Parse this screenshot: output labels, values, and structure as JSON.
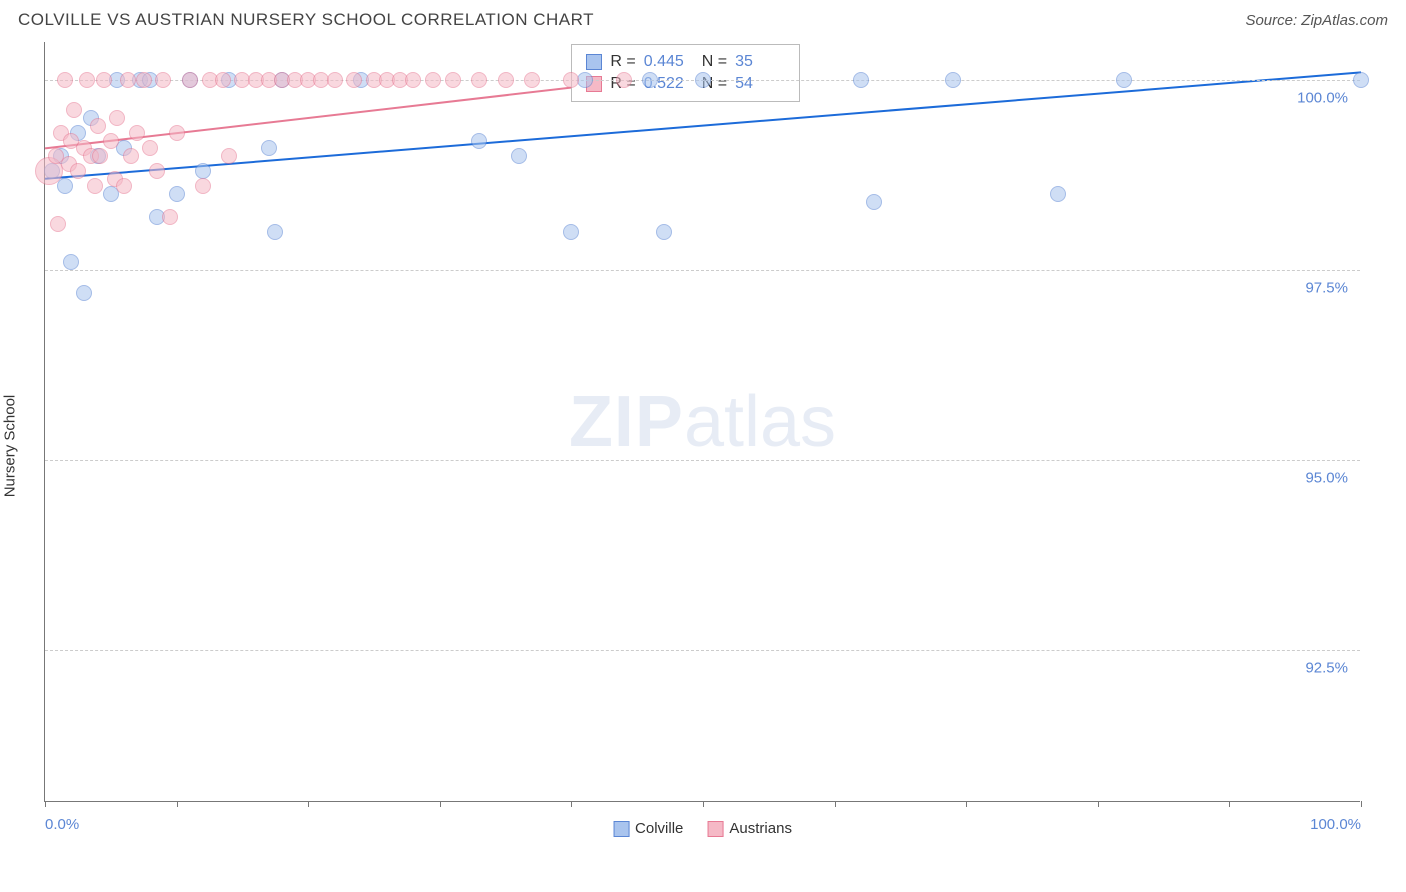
{
  "title": "COLVILLE VS AUSTRIAN NURSERY SCHOOL CORRELATION CHART",
  "source": "Source: ZipAtlas.com",
  "watermark": {
    "zip": "ZIP",
    "atlas": "atlas"
  },
  "yaxis": {
    "label": "Nursery School"
  },
  "chart": {
    "type": "scatter",
    "xlim": [
      0,
      100
    ],
    "ylim": [
      90.5,
      100.5
    ],
    "xtick_positions": [
      0,
      10,
      20,
      30,
      40,
      50,
      60,
      70,
      80,
      90,
      100
    ],
    "xtick_labels": {
      "0": "0.0%",
      "100": "100.0%"
    },
    "ytick_positions": [
      92.5,
      95.0,
      97.5,
      100.0
    ],
    "ytick_labels": [
      "92.5%",
      "95.0%",
      "97.5%",
      "100.0%"
    ],
    "grid_color": "#cccccc",
    "axis_color": "#777777",
    "background_color": "#ffffff",
    "marker_radius": 8,
    "marker_opacity": 0.55,
    "line_width": 2,
    "series": [
      {
        "name": "Colville",
        "label": "Colville",
        "color_fill": "#a9c4ee",
        "color_stroke": "#5b86d4",
        "line_color": "#1c6bd9",
        "R": 0.445,
        "N": 35,
        "trend": {
          "x1": 0,
          "y1": 98.7,
          "x2": 100,
          "y2": 100.1
        },
        "points": [
          {
            "x": 0.5,
            "y": 98.8
          },
          {
            "x": 1.2,
            "y": 99.0
          },
          {
            "x": 1.5,
            "y": 98.6
          },
          {
            "x": 2.0,
            "y": 97.6
          },
          {
            "x": 2.5,
            "y": 99.3
          },
          {
            "x": 3.0,
            "y": 97.2
          },
          {
            "x": 3.5,
            "y": 99.5
          },
          {
            "x": 4.0,
            "y": 99.0
          },
          {
            "x": 5.0,
            "y": 98.5
          },
          {
            "x": 5.5,
            "y": 100.0
          },
          {
            "x": 6.0,
            "y": 99.1
          },
          {
            "x": 7.2,
            "y": 100.0
          },
          {
            "x": 8.0,
            "y": 100.0
          },
          {
            "x": 8.5,
            "y": 98.2
          },
          {
            "x": 10.0,
            "y": 98.5
          },
          {
            "x": 11.0,
            "y": 100.0
          },
          {
            "x": 12.0,
            "y": 98.8
          },
          {
            "x": 14.0,
            "y": 100.0
          },
          {
            "x": 17.0,
            "y": 99.1
          },
          {
            "x": 17.5,
            "y": 98.0
          },
          {
            "x": 18.0,
            "y": 100.0
          },
          {
            "x": 24.0,
            "y": 100.0
          },
          {
            "x": 33.0,
            "y": 99.2
          },
          {
            "x": 36.0,
            "y": 99.0
          },
          {
            "x": 40.0,
            "y": 98.0
          },
          {
            "x": 41.0,
            "y": 100.0
          },
          {
            "x": 46.0,
            "y": 100.0
          },
          {
            "x": 47.0,
            "y": 98.0
          },
          {
            "x": 50.0,
            "y": 100.0
          },
          {
            "x": 62.0,
            "y": 100.0
          },
          {
            "x": 63.0,
            "y": 98.4
          },
          {
            "x": 69.0,
            "y": 100.0
          },
          {
            "x": 77.0,
            "y": 98.5
          },
          {
            "x": 82.0,
            "y": 100.0
          },
          {
            "x": 100.0,
            "y": 100.0
          }
        ]
      },
      {
        "name": "Austrians",
        "label": "Austrians",
        "color_fill": "#f5b9c6",
        "color_stroke": "#e77a94",
        "line_color": "#e77a94",
        "R": 0.522,
        "N": 54,
        "trend": {
          "x1": 0,
          "y1": 99.1,
          "x2": 50,
          "y2": 100.1
        },
        "points": [
          {
            "x": 0.3,
            "y": 98.8,
            "r": 14
          },
          {
            "x": 0.8,
            "y": 99.0
          },
          {
            "x": 1.0,
            "y": 98.1
          },
          {
            "x": 1.2,
            "y": 99.3
          },
          {
            "x": 1.5,
            "y": 100.0
          },
          {
            "x": 1.8,
            "y": 98.9
          },
          {
            "x": 2.0,
            "y": 99.2
          },
          {
            "x": 2.2,
            "y": 99.6
          },
          {
            "x": 2.5,
            "y": 98.8
          },
          {
            "x": 3.0,
            "y": 99.1
          },
          {
            "x": 3.2,
            "y": 100.0
          },
          {
            "x": 3.5,
            "y": 99.0
          },
          {
            "x": 3.8,
            "y": 98.6
          },
          {
            "x": 4.0,
            "y": 99.4
          },
          {
            "x": 4.2,
            "y": 99.0
          },
          {
            "x": 4.5,
            "y": 100.0
          },
          {
            "x": 5.0,
            "y": 99.2
          },
          {
            "x": 5.3,
            "y": 98.7
          },
          {
            "x": 5.5,
            "y": 99.5
          },
          {
            "x": 6.0,
            "y": 98.6
          },
          {
            "x": 6.3,
            "y": 100.0
          },
          {
            "x": 6.5,
            "y": 99.0
          },
          {
            "x": 7.0,
            "y": 99.3
          },
          {
            "x": 7.5,
            "y": 100.0
          },
          {
            "x": 8.0,
            "y": 99.1
          },
          {
            "x": 8.5,
            "y": 98.8
          },
          {
            "x": 9.0,
            "y": 100.0
          },
          {
            "x": 9.5,
            "y": 98.2
          },
          {
            "x": 10.0,
            "y": 99.3
          },
          {
            "x": 11.0,
            "y": 100.0
          },
          {
            "x": 12.0,
            "y": 98.6
          },
          {
            "x": 12.5,
            "y": 100.0
          },
          {
            "x": 13.5,
            "y": 100.0
          },
          {
            "x": 14.0,
            "y": 99.0
          },
          {
            "x": 15.0,
            "y": 100.0
          },
          {
            "x": 16.0,
            "y": 100.0
          },
          {
            "x": 17.0,
            "y": 100.0
          },
          {
            "x": 18.0,
            "y": 100.0
          },
          {
            "x": 19.0,
            "y": 100.0
          },
          {
            "x": 20.0,
            "y": 100.0
          },
          {
            "x": 21.0,
            "y": 100.0
          },
          {
            "x": 22.0,
            "y": 100.0
          },
          {
            "x": 23.5,
            "y": 100.0
          },
          {
            "x": 25.0,
            "y": 100.0
          },
          {
            "x": 26.0,
            "y": 100.0
          },
          {
            "x": 27.0,
            "y": 100.0
          },
          {
            "x": 28.0,
            "y": 100.0
          },
          {
            "x": 29.5,
            "y": 100.0
          },
          {
            "x": 31.0,
            "y": 100.0
          },
          {
            "x": 33.0,
            "y": 100.0
          },
          {
            "x": 35.0,
            "y": 100.0
          },
          {
            "x": 37.0,
            "y": 100.0
          },
          {
            "x": 40.0,
            "y": 100.0
          },
          {
            "x": 44.0,
            "y": 100.0
          }
        ]
      }
    ]
  },
  "stats_box": {
    "rows": [
      {
        "series": 0,
        "R_label": "R =",
        "N_label": "N ="
      },
      {
        "series": 1,
        "R_label": "R =",
        "N_label": "N ="
      }
    ]
  },
  "legend": {
    "items": [
      {
        "series": 0
      },
      {
        "series": 1
      }
    ]
  }
}
